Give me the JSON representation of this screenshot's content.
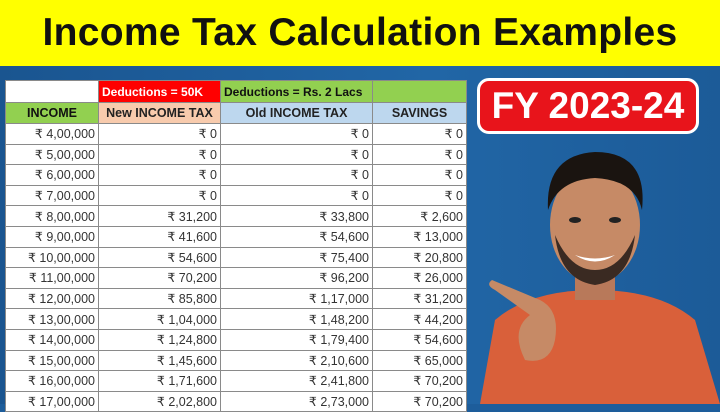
{
  "title": "Income Tax Calculation Examples",
  "badge": "FY 2023-24",
  "colors": {
    "title_bg": "#ffff00",
    "background": "#1d5d9b",
    "badge": "#e8141b",
    "deductions_new": "#ff0000",
    "deductions_old": "#92d050"
  },
  "table": {
    "group_headers": [
      "",
      "Deductions = 50K",
      "Deductions = Rs. 2 Lacs",
      ""
    ],
    "columns": [
      "INCOME",
      "New INCOME TAX",
      "Old INCOME TAX",
      "SAVINGS"
    ],
    "rows": [
      [
        "₹ 4,00,000",
        "₹ 0",
        "₹ 0",
        "₹ 0"
      ],
      [
        "₹ 5,00,000",
        "₹ 0",
        "₹ 0",
        "₹ 0"
      ],
      [
        "₹ 6,00,000",
        "₹ 0",
        "₹ 0",
        "₹ 0"
      ],
      [
        "₹ 7,00,000",
        "₹ 0",
        "₹ 0",
        "₹ 0"
      ],
      [
        "₹ 8,00,000",
        "₹ 31,200",
        "₹ 33,800",
        "₹ 2,600"
      ],
      [
        "₹ 9,00,000",
        "₹ 41,600",
        "₹ 54,600",
        "₹ 13,000"
      ],
      [
        "₹ 10,00,000",
        "₹ 54,600",
        "₹ 75,400",
        "₹ 20,800"
      ],
      [
        "₹ 11,00,000",
        "₹ 70,200",
        "₹ 96,200",
        "₹ 26,000"
      ],
      [
        "₹ 12,00,000",
        "₹ 85,800",
        "₹ 1,17,000",
        "₹ 31,200"
      ],
      [
        "₹ 13,00,000",
        "₹ 1,04,000",
        "₹ 1,48,200",
        "₹ 44,200"
      ],
      [
        "₹ 14,00,000",
        "₹ 1,24,800",
        "₹ 1,79,400",
        "₹ 54,600"
      ],
      [
        "₹ 15,00,000",
        "₹ 1,45,600",
        "₹ 2,10,600",
        "₹ 65,000"
      ],
      [
        "₹ 16,00,000",
        "₹ 1,71,600",
        "₹ 2,41,800",
        "₹ 70,200"
      ],
      [
        "₹ 17,00,000",
        "₹ 2,02,800",
        "₹ 2,73,000",
        "₹ 70,200"
      ]
    ]
  }
}
